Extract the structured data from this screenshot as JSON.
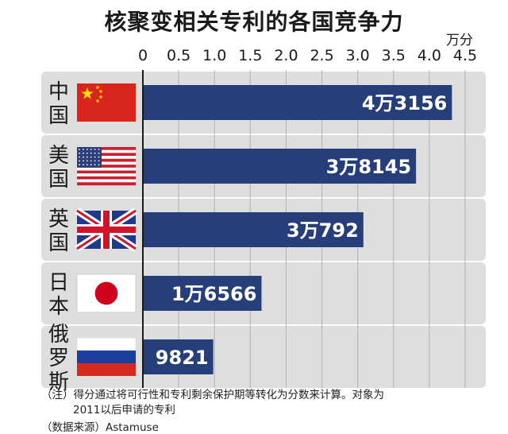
{
  "title": "核聚变相关专利的各国竞争力",
  "unit": "万分",
  "note_line1": "（注）得分通过将可行性和专利剩余保护期等转化为分数来计算。对象为",
  "note_line2": "2011以后申请的专利",
  "source": "（数据来源）Astamuse",
  "colors": {
    "bar": "#263f7a",
    "row_band": "#dedede",
    "grid": "#b0b0b0",
    "axis": "#1a1a1a",
    "bar_label": "#ffffff"
  },
  "chart_data": {
    "type": "bar",
    "orientation": "horizontal",
    "title": "核聚变相关专利的各国竞争力",
    "unit": "万分",
    "xlim": [
      0,
      4.5
    ],
    "x_ticks": [
      "0",
      "0.5",
      "1.0",
      "1.5",
      "2.0",
      "2.5",
      "3.0",
      "3.5",
      "4.0",
      "4.5"
    ],
    "grid": true,
    "categories": [
      {
        "name": "中国",
        "flag": "china-flag-icon",
        "value": 4.3156,
        "label": "4万3156"
      },
      {
        "name": "美国",
        "flag": "usa-flag-icon",
        "value": 3.8145,
        "label": "3万8145"
      },
      {
        "name": "英国",
        "flag": "uk-flag-icon",
        "value": 3.0792,
        "label": "3万792"
      },
      {
        "name": "日本",
        "flag": "japan-flag-icon",
        "value": 1.6566,
        "label": "1万6566"
      },
      {
        "name": "俄罗斯",
        "flag": "russia-flag-icon",
        "value": 0.9821,
        "label": "9821"
      }
    ]
  }
}
